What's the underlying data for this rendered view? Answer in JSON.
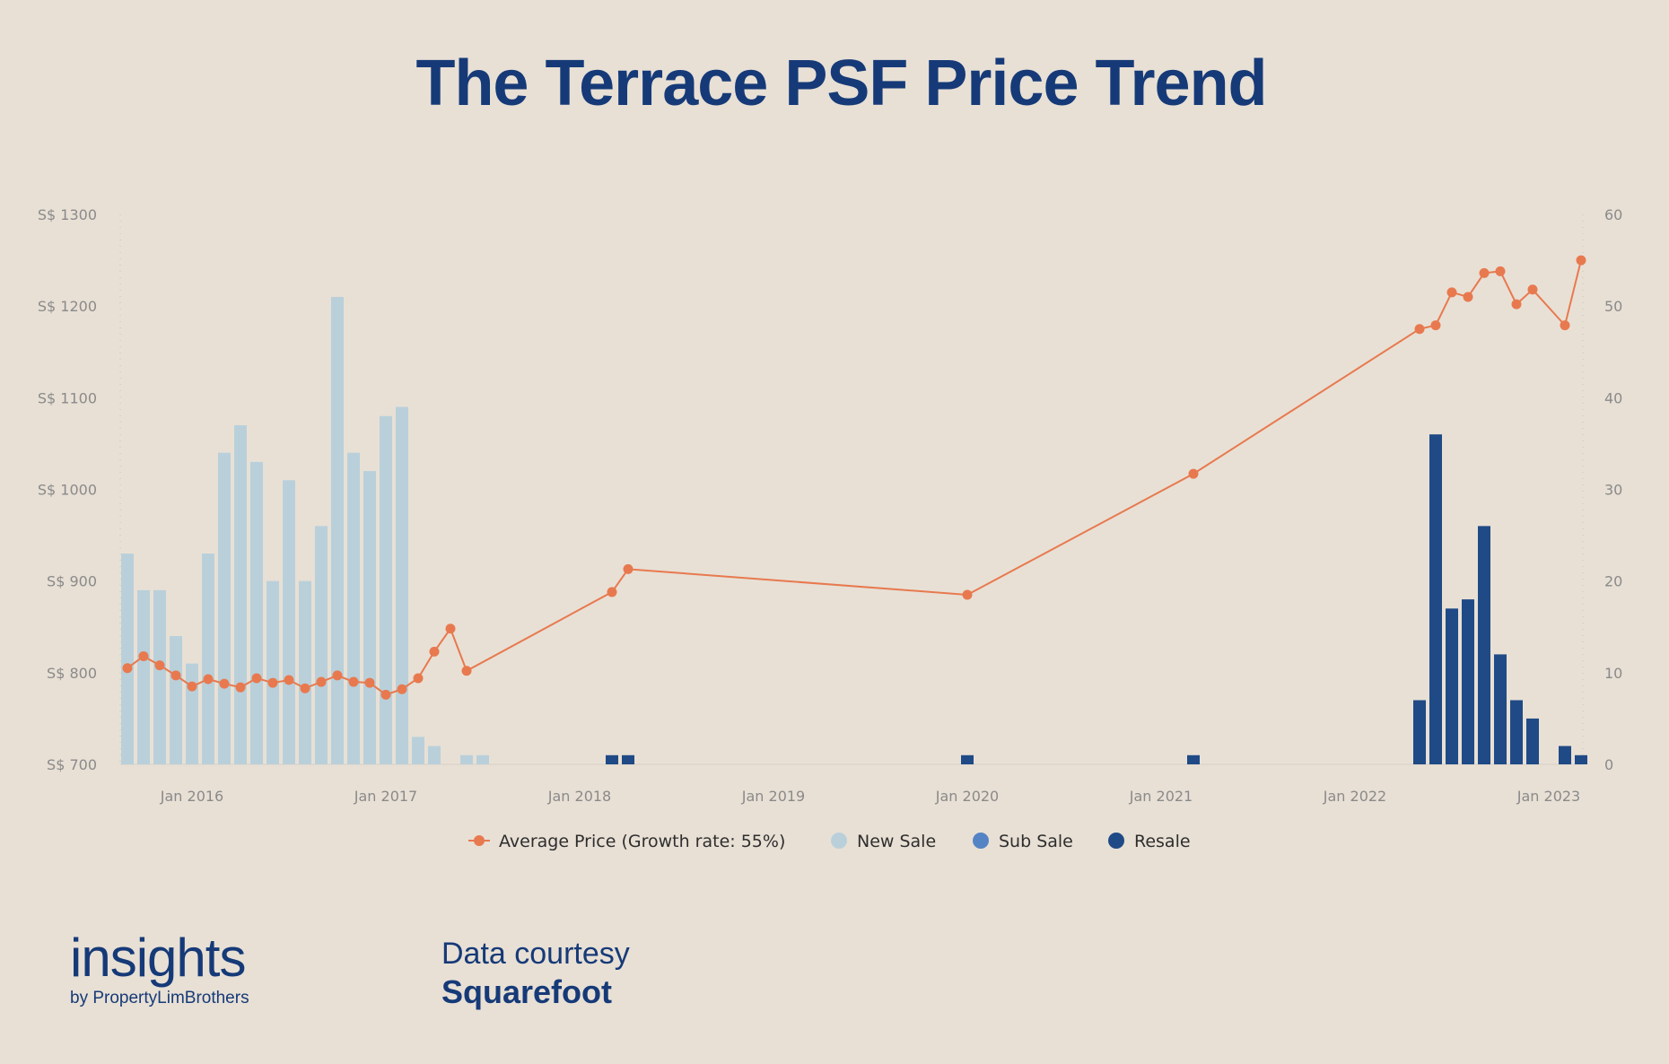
{
  "title": "The Terrace PSF Price Trend",
  "chart_data": {
    "type": "bar+line",
    "left_axis": {
      "ticks": [
        "S$ 1300",
        "S$ 1200",
        "S$ 1100",
        "S$ 1000",
        "S$ 900",
        "S$ 800",
        "S$ 700"
      ],
      "ylim": [
        700,
        1300
      ]
    },
    "right_axis": {
      "ticks": [
        "60",
        "50",
        "40",
        "30",
        "20",
        "10",
        "0"
      ],
      "ylim": [
        0,
        60
      ]
    },
    "x_ticks": [
      "Jan 2016",
      "Jan 2017",
      "Jan 2018",
      "Jan 2019",
      "Jan 2020",
      "Jan 2021",
      "Jan 2022",
      "Jan 2023"
    ],
    "x_range": [
      "2015-09",
      "2023-02"
    ],
    "legend": {
      "average": "Average Price (Growth rate: 55%)",
      "new_sale": "New Sale",
      "sub_sale": "Sub Sale",
      "resale": "Resale"
    },
    "colors": {
      "average": "#e8794f",
      "new_sale": "#b9d0da",
      "sub_sale": "#5584c4",
      "resale": "#1f4a86"
    },
    "bars": [
      {
        "month": "2015-09",
        "type": "new_sale",
        "value": 23
      },
      {
        "month": "2015-10",
        "type": "new_sale",
        "value": 19
      },
      {
        "month": "2015-11",
        "type": "new_sale",
        "value": 19
      },
      {
        "month": "2015-12",
        "type": "new_sale",
        "value": 14
      },
      {
        "month": "2016-01",
        "type": "new_sale",
        "value": 11
      },
      {
        "month": "2016-02",
        "type": "new_sale",
        "value": 23
      },
      {
        "month": "2016-03",
        "type": "new_sale",
        "value": 34
      },
      {
        "month": "2016-04",
        "type": "new_sale",
        "value": 37
      },
      {
        "month": "2016-05",
        "type": "new_sale",
        "value": 33
      },
      {
        "month": "2016-06",
        "type": "new_sale",
        "value": 20
      },
      {
        "month": "2016-07",
        "type": "new_sale",
        "value": 31
      },
      {
        "month": "2016-08",
        "type": "new_sale",
        "value": 20
      },
      {
        "month": "2016-09",
        "type": "new_sale",
        "value": 26
      },
      {
        "month": "2016-10",
        "type": "new_sale",
        "value": 51
      },
      {
        "month": "2016-11",
        "type": "new_sale",
        "value": 34
      },
      {
        "month": "2016-12",
        "type": "new_sale",
        "value": 32
      },
      {
        "month": "2017-01",
        "type": "new_sale",
        "value": 38
      },
      {
        "month": "2017-02",
        "type": "new_sale",
        "value": 39
      },
      {
        "month": "2017-03",
        "type": "new_sale",
        "value": 3
      },
      {
        "month": "2017-04",
        "type": "new_sale",
        "value": 2
      },
      {
        "month": "2017-06",
        "type": "new_sale",
        "value": 1
      },
      {
        "month": "2017-07",
        "type": "new_sale",
        "value": 1
      },
      {
        "month": "2018-03",
        "type": "resale",
        "value": 1
      },
      {
        "month": "2018-04",
        "type": "resale",
        "value": 1
      },
      {
        "month": "2020-01",
        "type": "resale",
        "value": 1
      },
      {
        "month": "2021-03",
        "type": "resale",
        "value": 1
      },
      {
        "month": "2022-05",
        "type": "resale",
        "value": 7
      },
      {
        "month": "2022-06",
        "type": "resale",
        "value": 36
      },
      {
        "month": "2022-07",
        "type": "resale",
        "value": 17
      },
      {
        "month": "2022-08",
        "type": "resale",
        "value": 18
      },
      {
        "month": "2022-09",
        "type": "resale",
        "value": 26
      },
      {
        "month": "2022-10",
        "type": "resale",
        "value": 12
      },
      {
        "month": "2022-11",
        "type": "resale",
        "value": 7
      },
      {
        "month": "2022-12",
        "type": "resale",
        "value": 5
      },
      {
        "month": "2023-02",
        "type": "resale",
        "value": 2
      },
      {
        "month": "2023-03",
        "type": "resale",
        "value": 1
      }
    ],
    "average_price": [
      {
        "month": "2015-09",
        "value": 805
      },
      {
        "month": "2015-10",
        "value": 818
      },
      {
        "month": "2015-11",
        "value": 808
      },
      {
        "month": "2015-12",
        "value": 797
      },
      {
        "month": "2016-01",
        "value": 785
      },
      {
        "month": "2016-02",
        "value": 793
      },
      {
        "month": "2016-03",
        "value": 788
      },
      {
        "month": "2016-04",
        "value": 784
      },
      {
        "month": "2016-05",
        "value": 794
      },
      {
        "month": "2016-06",
        "value": 789
      },
      {
        "month": "2016-07",
        "value": 792
      },
      {
        "month": "2016-08",
        "value": 783
      },
      {
        "month": "2016-09",
        "value": 790
      },
      {
        "month": "2016-10",
        "value": 797
      },
      {
        "month": "2016-11",
        "value": 790
      },
      {
        "month": "2016-12",
        "value": 789
      },
      {
        "month": "2017-01",
        "value": 776
      },
      {
        "month": "2017-02",
        "value": 782
      },
      {
        "month": "2017-03",
        "value": 794
      },
      {
        "month": "2017-04",
        "value": 823
      },
      {
        "month": "2017-05",
        "value": 848
      },
      {
        "month": "2017-06",
        "value": 802
      },
      {
        "month": "2018-03",
        "value": 888
      },
      {
        "month": "2018-04",
        "value": 913
      },
      {
        "month": "2020-01",
        "value": 885
      },
      {
        "month": "2021-03",
        "value": 1017
      },
      {
        "month": "2022-05",
        "value": 1175
      },
      {
        "month": "2022-06",
        "value": 1179
      },
      {
        "month": "2022-07",
        "value": 1215
      },
      {
        "month": "2022-08",
        "value": 1210
      },
      {
        "month": "2022-09",
        "value": 1236
      },
      {
        "month": "2022-10",
        "value": 1238
      },
      {
        "month": "2022-11",
        "value": 1202
      },
      {
        "month": "2022-12",
        "value": 1218
      },
      {
        "month": "2023-02",
        "value": 1179
      },
      {
        "month": "2023-03",
        "value": 1250
      }
    ]
  },
  "brand": {
    "name": "insights",
    "sub": "by PropertyLimBrothers"
  },
  "courtesy": {
    "label": "Data courtesy",
    "source": "Squarefoot"
  }
}
